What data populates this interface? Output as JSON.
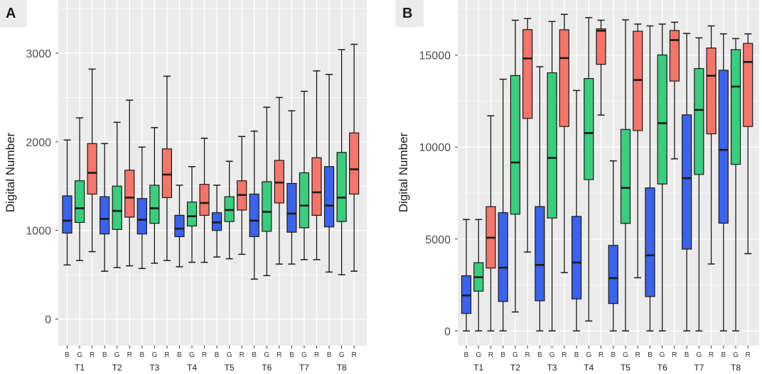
{
  "colors": {
    "B": "#3c63e8",
    "G": "#3ccc7e",
    "R": "#f2766b",
    "panel_bg": "#ebebeb",
    "grid": "#ffffff",
    "tag_bg": "#ebebeb"
  },
  "chart_data": [
    {
      "type": "boxplot",
      "panel_label": "A",
      "ylabel": "Digital Number",
      "ylim": [
        -300,
        3600
      ],
      "yticks": [
        0,
        1000,
        2000,
        3000
      ],
      "ytick_labels": [
        "0",
        "1000",
        "2000",
        "3000"
      ],
      "groups": [
        "T1",
        "T2",
        "T3",
        "T4",
        "T5",
        "T6",
        "T7",
        "T8"
      ],
      "channels": [
        "B",
        "G",
        "R"
      ],
      "boxes": [
        {
          "group": "T1",
          "channel": "B",
          "min": 610,
          "q1": 970,
          "median": 1110,
          "q3": 1390,
          "max": 2020
        },
        {
          "group": "T1",
          "channel": "G",
          "min": 660,
          "q1": 1090,
          "median": 1250,
          "q3": 1560,
          "max": 2270
        },
        {
          "group": "T1",
          "channel": "R",
          "min": 760,
          "q1": 1410,
          "median": 1650,
          "q3": 1980,
          "max": 2820
        },
        {
          "group": "T2",
          "channel": "B",
          "min": 540,
          "q1": 960,
          "median": 1130,
          "q3": 1380,
          "max": 1980
        },
        {
          "group": "T2",
          "channel": "G",
          "min": 580,
          "q1": 1010,
          "median": 1220,
          "q3": 1500,
          "max": 2220
        },
        {
          "group": "T2",
          "channel": "R",
          "min": 600,
          "q1": 1150,
          "median": 1370,
          "q3": 1680,
          "max": 2470
        },
        {
          "group": "T3",
          "channel": "B",
          "min": 570,
          "q1": 960,
          "median": 1120,
          "q3": 1360,
          "max": 1940
        },
        {
          "group": "T3",
          "channel": "G",
          "min": 630,
          "q1": 1080,
          "median": 1250,
          "q3": 1510,
          "max": 2160
        },
        {
          "group": "T3",
          "channel": "R",
          "min": 660,
          "q1": 1370,
          "median": 1630,
          "q3": 1920,
          "max": 2740
        },
        {
          "group": "T4",
          "channel": "B",
          "min": 590,
          "q1": 930,
          "median": 1020,
          "q3": 1170,
          "max": 1510
        },
        {
          "group": "T4",
          "channel": "G",
          "min": 640,
          "q1": 1050,
          "median": 1160,
          "q3": 1320,
          "max": 1720
        },
        {
          "group": "T4",
          "channel": "R",
          "min": 640,
          "q1": 1170,
          "median": 1310,
          "q3": 1520,
          "max": 2040
        },
        {
          "group": "T5",
          "channel": "B",
          "min": 700,
          "q1": 1000,
          "median": 1090,
          "q3": 1200,
          "max": 1510
        },
        {
          "group": "T5",
          "channel": "G",
          "min": 680,
          "q1": 1100,
          "median": 1230,
          "q3": 1380,
          "max": 1780
        },
        {
          "group": "T5",
          "channel": "R",
          "min": 730,
          "q1": 1230,
          "median": 1400,
          "q3": 1560,
          "max": 2060
        },
        {
          "group": "T6",
          "channel": "B",
          "min": 450,
          "q1": 930,
          "median": 1110,
          "q3": 1410,
          "max": 2120
        },
        {
          "group": "T6",
          "channel": "G",
          "min": 490,
          "q1": 990,
          "median": 1210,
          "q3": 1550,
          "max": 2390
        },
        {
          "group": "T6",
          "channel": "R",
          "min": 620,
          "q1": 1310,
          "median": 1540,
          "q3": 1790,
          "max": 2500
        },
        {
          "group": "T7",
          "channel": "B",
          "min": 620,
          "q1": 980,
          "median": 1190,
          "q3": 1530,
          "max": 2350
        },
        {
          "group": "T7",
          "channel": "G",
          "min": 670,
          "q1": 1030,
          "median": 1280,
          "q3": 1650,
          "max": 2570
        },
        {
          "group": "T7",
          "channel": "R",
          "min": 670,
          "q1": 1170,
          "median": 1430,
          "q3": 1820,
          "max": 2800
        },
        {
          "group": "T8",
          "channel": "B",
          "min": 530,
          "q1": 1040,
          "median": 1280,
          "q3": 1720,
          "max": 2760
        },
        {
          "group": "T8",
          "channel": "G",
          "min": 500,
          "q1": 1100,
          "median": 1370,
          "q3": 1880,
          "max": 3040
        },
        {
          "group": "T8",
          "channel": "R",
          "min": 540,
          "q1": 1410,
          "median": 1690,
          "q3": 2100,
          "max": 3100
        }
      ]
    },
    {
      "type": "boxplot",
      "panel_label": "B",
      "ylabel": "Digital Number",
      "ylim": [
        -800,
        18000
      ],
      "yticks": [
        0,
        5000,
        10000,
        15000
      ],
      "ytick_labels": [
        "0",
        "5000",
        "10000",
        "15000"
      ],
      "groups": [
        "T1",
        "T2",
        "T3",
        "T4",
        "T5",
        "T6",
        "T7",
        "T8"
      ],
      "channels": [
        "B",
        "G",
        "R"
      ],
      "boxes": [
        {
          "group": "T1",
          "channel": "B",
          "min": 0,
          "q1": 950,
          "median": 1930,
          "q3": 3000,
          "max": 6060
        },
        {
          "group": "T1",
          "channel": "G",
          "min": 0,
          "q1": 2160,
          "median": 2920,
          "q3": 3710,
          "max": 6060
        },
        {
          "group": "T1",
          "channel": "R",
          "min": 0,
          "q1": 3420,
          "median": 5070,
          "q3": 6760,
          "max": 11700
        },
        {
          "group": "T2",
          "channel": "B",
          "min": 0,
          "q1": 1600,
          "median": 3440,
          "q3": 6430,
          "max": 13690
        },
        {
          "group": "T2",
          "channel": "G",
          "min": 1030,
          "q1": 6350,
          "median": 9160,
          "q3": 13890,
          "max": 16900
        },
        {
          "group": "T2",
          "channel": "R",
          "min": 4290,
          "q1": 11560,
          "median": 14820,
          "q3": 16390,
          "max": 16990
        },
        {
          "group": "T3",
          "channel": "B",
          "min": 0,
          "q1": 1640,
          "median": 3590,
          "q3": 6760,
          "max": 14370
        },
        {
          "group": "T3",
          "channel": "G",
          "min": 0,
          "q1": 6140,
          "median": 9410,
          "q3": 14040,
          "max": 16830
        },
        {
          "group": "T3",
          "channel": "R",
          "min": 3170,
          "q1": 11120,
          "median": 14840,
          "q3": 16380,
          "max": 17220
        },
        {
          "group": "T4",
          "channel": "B",
          "min": 0,
          "q1": 1740,
          "median": 3720,
          "q3": 6230,
          "max": 13080
        },
        {
          "group": "T4",
          "channel": "G",
          "min": 540,
          "q1": 8230,
          "median": 10760,
          "q3": 13730,
          "max": 17040
        },
        {
          "group": "T4",
          "channel": "R",
          "min": 11740,
          "q1": 14500,
          "median": 16330,
          "q3": 16430,
          "max": 16900
        },
        {
          "group": "T5",
          "channel": "B",
          "min": 0,
          "q1": 1490,
          "median": 2870,
          "q3": 4650,
          "max": 9250
        },
        {
          "group": "T5",
          "channel": "G",
          "min": 0,
          "q1": 5850,
          "median": 7780,
          "q3": 10960,
          "max": 16920
        },
        {
          "group": "T5",
          "channel": "R",
          "min": 2890,
          "q1": 10900,
          "median": 13650,
          "q3": 16300,
          "max": 16690
        },
        {
          "group": "T6",
          "channel": "B",
          "min": 0,
          "q1": 1870,
          "median": 4110,
          "q3": 7780,
          "max": 16590
        },
        {
          "group": "T6",
          "channel": "G",
          "min": 0,
          "q1": 7990,
          "median": 11300,
          "q3": 15010,
          "max": 16690
        },
        {
          "group": "T6",
          "channel": "R",
          "min": 9360,
          "q1": 13590,
          "median": 15820,
          "q3": 16340,
          "max": 16790
        },
        {
          "group": "T7",
          "channel": "B",
          "min": 0,
          "q1": 4450,
          "median": 8310,
          "q3": 11750,
          "max": 16180
        },
        {
          "group": "T7",
          "channel": "G",
          "min": 0,
          "q1": 8510,
          "median": 12020,
          "q3": 14270,
          "max": 15940
        },
        {
          "group": "T7",
          "channel": "R",
          "min": 3640,
          "q1": 10720,
          "median": 13880,
          "q3": 15390,
          "max": 16590
        },
        {
          "group": "T8",
          "channel": "B",
          "min": 0,
          "q1": 5860,
          "median": 9850,
          "q3": 14180,
          "max": 16160
        },
        {
          "group": "T8",
          "channel": "G",
          "min": 0,
          "q1": 9060,
          "median": 13290,
          "q3": 15300,
          "max": 15900
        },
        {
          "group": "T8",
          "channel": "R",
          "min": 4200,
          "q1": 11120,
          "median": 14630,
          "q3": 15640,
          "max": 16160
        }
      ]
    }
  ]
}
